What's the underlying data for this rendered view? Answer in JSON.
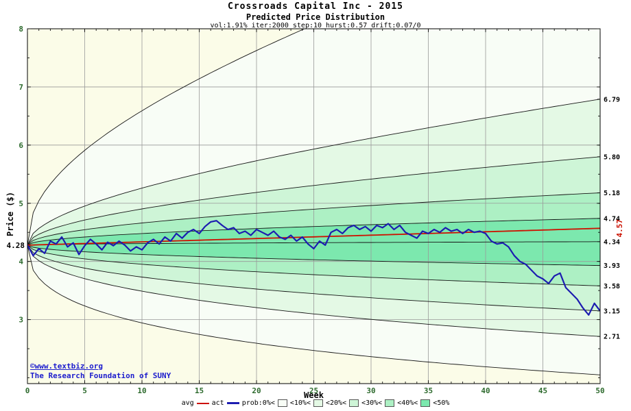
{
  "header": {
    "title": "Crossroads Capital Inc - 2015",
    "subtitle": "Predicted Price Distribution",
    "params": "vol:1.91% iter:2000 step:10 hurst:0.57 drift:0.07/0"
  },
  "watermark": {
    "line1": "©www.textbiz.org",
    "line2": "The Research Foundation of SUNY",
    "color": "#1c1ccd"
  },
  "axes": {
    "y_label": "Price ($)",
    "x_label": "Week",
    "y_ticks": [
      8,
      7,
      6,
      5,
      4,
      3
    ],
    "x_ticks": [
      0,
      5,
      10,
      15,
      20,
      25,
      30,
      35,
      40,
      45,
      50
    ],
    "tick_color": "#2d6a2d",
    "start_price_label": "4.28",
    "avg_end_label": "4.57"
  },
  "legend": {
    "items": [
      {
        "kind": "text",
        "label": "avg"
      },
      {
        "kind": "line",
        "color": "#cc1100",
        "thick": false
      },
      {
        "kind": "text",
        "label": "act"
      },
      {
        "kind": "line",
        "color": "#1c1cb0",
        "thick": true
      },
      {
        "kind": "text",
        "label": "prob:0%<"
      },
      {
        "kind": "chip",
        "color": "#f8fdf6"
      },
      {
        "kind": "text",
        "label": "<10%<"
      },
      {
        "kind": "chip",
        "color": "#e4f9e5"
      },
      {
        "kind": "text",
        "label": "<20%<"
      },
      {
        "kind": "chip",
        "color": "#cef5d7"
      },
      {
        "kind": "text",
        "label": "<30%<"
      },
      {
        "kind": "chip",
        "color": "#adf0c4"
      },
      {
        "kind": "text",
        "label": "<40%<"
      },
      {
        "kind": "chip",
        "color": "#7ce8ae"
      },
      {
        "kind": "text",
        "label": "<50%"
      }
    ]
  },
  "chart_data": {
    "type": "area",
    "title": "Crossroads Capital Inc - 2015",
    "subtitle": "Predicted Price Distribution",
    "xlabel": "Week",
    "ylabel": "Price ($)",
    "xlim": [
      0,
      50
    ],
    "ylim": [
      1.9,
      8.0
    ],
    "grid": true,
    "plot_bg": "#fbfce8",
    "grid_color": "#999999",
    "curve_color": "#151515",
    "start_price": 4.28,
    "median_end": 4.34,
    "bands": [
      {
        "upper": 10.0,
        "lower": 2.05,
        "power": 0.42,
        "color": "#f8fdf6"
      },
      {
        "upper": 6.79,
        "lower": 2.71,
        "power": 0.5,
        "color": "#e4f9e5"
      },
      {
        "upper": 5.8,
        "lower": 3.15,
        "power": 0.5,
        "color": "#cef5d7"
      },
      {
        "upper": 5.18,
        "lower": 3.58,
        "power": 0.5,
        "color": "#adf0c4"
      },
      {
        "upper": 4.74,
        "lower": 3.93,
        "power": 0.5,
        "color": "#7ce8ae"
      }
    ],
    "right_axis_values": [
      6.79,
      5.8,
      5.18,
      4.74,
      4.34,
      3.93,
      3.58,
      3.15,
      2.71
    ],
    "avg": {
      "label": "avg",
      "color": "#cc1100",
      "start": 4.28,
      "end": 4.57
    },
    "act": {
      "label": "act",
      "color": "#1c1cb0",
      "x_start": 0,
      "x_step": 0.5,
      "values": [
        4.28,
        4.1,
        4.22,
        4.14,
        4.35,
        4.3,
        4.42,
        4.25,
        4.32,
        4.12,
        4.27,
        4.38,
        4.3,
        4.2,
        4.33,
        4.27,
        4.35,
        4.28,
        4.18,
        4.25,
        4.2,
        4.32,
        4.38,
        4.3,
        4.42,
        4.35,
        4.48,
        4.4,
        4.5,
        4.55,
        4.48,
        4.6,
        4.68,
        4.7,
        4.62,
        4.55,
        4.58,
        4.48,
        4.52,
        4.45,
        4.55,
        4.5,
        4.45,
        4.52,
        4.42,
        4.38,
        4.45,
        4.35,
        4.42,
        4.3,
        4.22,
        4.35,
        4.28,
        4.5,
        4.55,
        4.48,
        4.58,
        4.62,
        4.55,
        4.6,
        4.52,
        4.62,
        4.58,
        4.65,
        4.55,
        4.62,
        4.5,
        4.45,
        4.4,
        4.52,
        4.48,
        4.55,
        4.5,
        4.58,
        4.52,
        4.55,
        4.48,
        4.55,
        4.5,
        4.52,
        4.48,
        4.35,
        4.3,
        4.32,
        4.25,
        4.1,
        4.0,
        3.95,
        3.85,
        3.75,
        3.7,
        3.62,
        3.75,
        3.8,
        3.55,
        3.45,
        3.35,
        3.2,
        3.08,
        3.28,
        3.15
      ]
    }
  }
}
